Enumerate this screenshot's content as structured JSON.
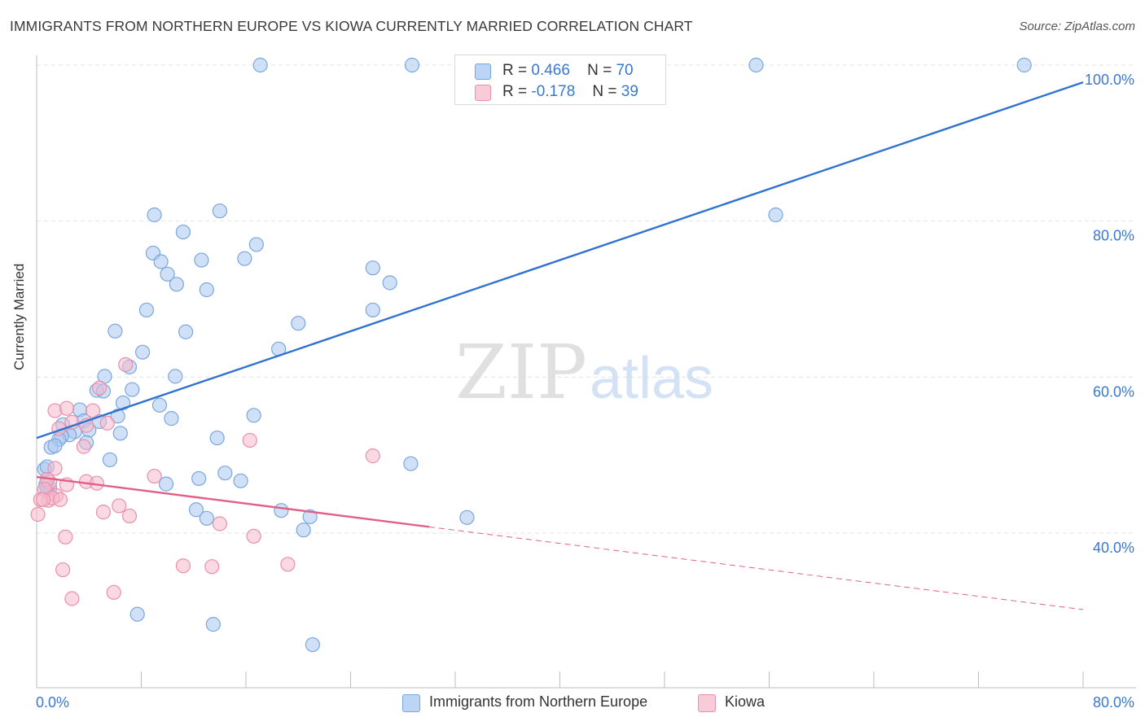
{
  "title": "IMMIGRANTS FROM NORTHERN EUROPE VS KIOWA CURRENTLY MARRIED CORRELATION CHART",
  "source": "Source: ZipAtlas.com",
  "watermark": {
    "zip": "ZIP",
    "atlas": "atlas"
  },
  "stats": [
    {
      "r_label": "R =",
      "r_value": "0.466",
      "n_label": "N =",
      "n_value": "70"
    },
    {
      "r_label": "R =",
      "r_value": "-0.178",
      "n_label": "N =",
      "n_value": "39"
    }
  ],
  "legend": [
    {
      "label": "Immigrants from Northern Europe"
    },
    {
      "label": "Kiowa"
    }
  ],
  "colors": {
    "blue_fill": "#a9c8f0",
    "blue_stroke": "#7aa6e0",
    "blue_line": "#2f72d0",
    "pink_fill": "#f6b9cc",
    "pink_stroke": "#ea8fab",
    "pink_line": "#e0608a",
    "tick_label": "#3a78d0",
    "grid": "#e3e3e3"
  },
  "chart_data": {
    "type": "scatter",
    "title": "IMMIGRANTS FROM NORTHERN EUROPE VS KIOWA CURRENTLY MARRIED CORRELATION CHART",
    "xlabel": "",
    "ylabel": "Currently Married",
    "xlim": [
      0,
      80
    ],
    "ylim": [
      22,
      103
    ],
    "x_tick_labels": [
      "0.0%",
      "80.0%"
    ],
    "y_ticks": [
      40,
      60,
      80,
      100
    ],
    "y_tick_labels": [
      "40.0%",
      "60.0%",
      "80.0%",
      "100.0%"
    ],
    "grid": true,
    "legend_position": "bottom",
    "series": [
      {
        "name": "Immigrants from Northern Europe",
        "color": "#a9c8f0",
        "points": [
          [
            17.1,
            100.0
          ],
          [
            28.7,
            100.0
          ],
          [
            55.0,
            100.0
          ],
          [
            75.5,
            100.0
          ],
          [
            56.5,
            80.8
          ],
          [
            9.0,
            80.8
          ],
          [
            14.0,
            81.3
          ],
          [
            11.2,
            78.6
          ],
          [
            8.9,
            75.9
          ],
          [
            16.8,
            77.0
          ],
          [
            15.9,
            75.2
          ],
          [
            12.6,
            75.0
          ],
          [
            9.5,
            74.8
          ],
          [
            10.0,
            73.2
          ],
          [
            10.7,
            71.9
          ],
          [
            13.0,
            71.2
          ],
          [
            25.7,
            74.0
          ],
          [
            27.0,
            72.1
          ],
          [
            8.4,
            68.6
          ],
          [
            25.7,
            68.6
          ],
          [
            20.0,
            66.9
          ],
          [
            11.4,
            65.8
          ],
          [
            6.0,
            65.9
          ],
          [
            18.5,
            63.6
          ],
          [
            8.1,
            63.2
          ],
          [
            7.1,
            61.3
          ],
          [
            10.6,
            60.1
          ],
          [
            5.2,
            60.1
          ],
          [
            7.3,
            58.4
          ],
          [
            4.6,
            58.3
          ],
          [
            5.1,
            58.2
          ],
          [
            6.6,
            56.7
          ],
          [
            9.4,
            56.4
          ],
          [
            3.3,
            55.8
          ],
          [
            6.2,
            55.0
          ],
          [
            10.3,
            54.7
          ],
          [
            16.6,
            55.1
          ],
          [
            4.8,
            54.3
          ],
          [
            3.6,
            54.4
          ],
          [
            2.0,
            53.9
          ],
          [
            2.9,
            53.0
          ],
          [
            4.0,
            53.2
          ],
          [
            2.5,
            52.6
          ],
          [
            1.9,
            52.4
          ],
          [
            6.4,
            52.8
          ],
          [
            1.7,
            52.0
          ],
          [
            13.8,
            52.2
          ],
          [
            3.8,
            51.6
          ],
          [
            1.1,
            51.0
          ],
          [
            1.4,
            51.2
          ],
          [
            5.6,
            49.4
          ],
          [
            28.6,
            48.9
          ],
          [
            0.6,
            48.2
          ],
          [
            0.8,
            48.5
          ],
          [
            14.4,
            47.7
          ],
          [
            12.4,
            47.0
          ],
          [
            15.6,
            46.7
          ],
          [
            9.9,
            46.3
          ],
          [
            0.7,
            46.2
          ],
          [
            1.0,
            45.8
          ],
          [
            0.8,
            45.6
          ],
          [
            12.2,
            43.0
          ],
          [
            18.7,
            42.9
          ],
          [
            13.0,
            41.9
          ],
          [
            20.9,
            42.1
          ],
          [
            32.9,
            42.0
          ],
          [
            20.4,
            40.4
          ],
          [
            7.7,
            29.6
          ],
          [
            13.5,
            28.3
          ],
          [
            21.1,
            25.7
          ]
        ]
      },
      {
        "name": "Kiowa",
        "color": "#f6b9cc",
        "points": [
          [
            6.8,
            61.6
          ],
          [
            4.8,
            58.6
          ],
          [
            1.4,
            55.7
          ],
          [
            2.3,
            56.0
          ],
          [
            4.3,
            55.7
          ],
          [
            2.7,
            54.2
          ],
          [
            5.4,
            54.1
          ],
          [
            3.8,
            53.8
          ],
          [
            1.7,
            53.4
          ],
          [
            16.3,
            51.9
          ],
          [
            3.6,
            51.1
          ],
          [
            25.7,
            49.9
          ],
          [
            1.4,
            48.3
          ],
          [
            9.0,
            47.3
          ],
          [
            1.0,
            46.5
          ],
          [
            0.8,
            46.9
          ],
          [
            2.3,
            46.2
          ],
          [
            3.8,
            46.6
          ],
          [
            4.6,
            46.4
          ],
          [
            0.6,
            45.6
          ],
          [
            1.5,
            44.8
          ],
          [
            0.9,
            44.2
          ],
          [
            1.2,
            44.5
          ],
          [
            0.3,
            44.3
          ],
          [
            1.8,
            44.3
          ],
          [
            6.3,
            43.5
          ],
          [
            5.1,
            42.7
          ],
          [
            7.1,
            42.2
          ],
          [
            0.1,
            42.4
          ],
          [
            14.0,
            41.2
          ],
          [
            2.2,
            39.5
          ],
          [
            16.6,
            39.6
          ],
          [
            11.2,
            35.8
          ],
          [
            13.4,
            35.7
          ],
          [
            19.2,
            36.0
          ],
          [
            2.0,
            35.3
          ],
          [
            5.9,
            32.4
          ],
          [
            2.7,
            31.6
          ],
          [
            0.5,
            44.3
          ]
        ]
      }
    ],
    "trend_lines": [
      {
        "series": "Immigrants from Northern Europe",
        "from": [
          0,
          52.2
        ],
        "to": [
          80,
          97.8
        ],
        "style": "solid"
      },
      {
        "series": "Kiowa",
        "from": [
          0,
          47.2
        ],
        "to": [
          30,
          40.8
        ],
        "style": "solid"
      },
      {
        "series": "Kiowa",
        "from": [
          30,
          40.8
        ],
        "to": [
          80,
          30.2
        ],
        "style": "dashed"
      }
    ]
  }
}
